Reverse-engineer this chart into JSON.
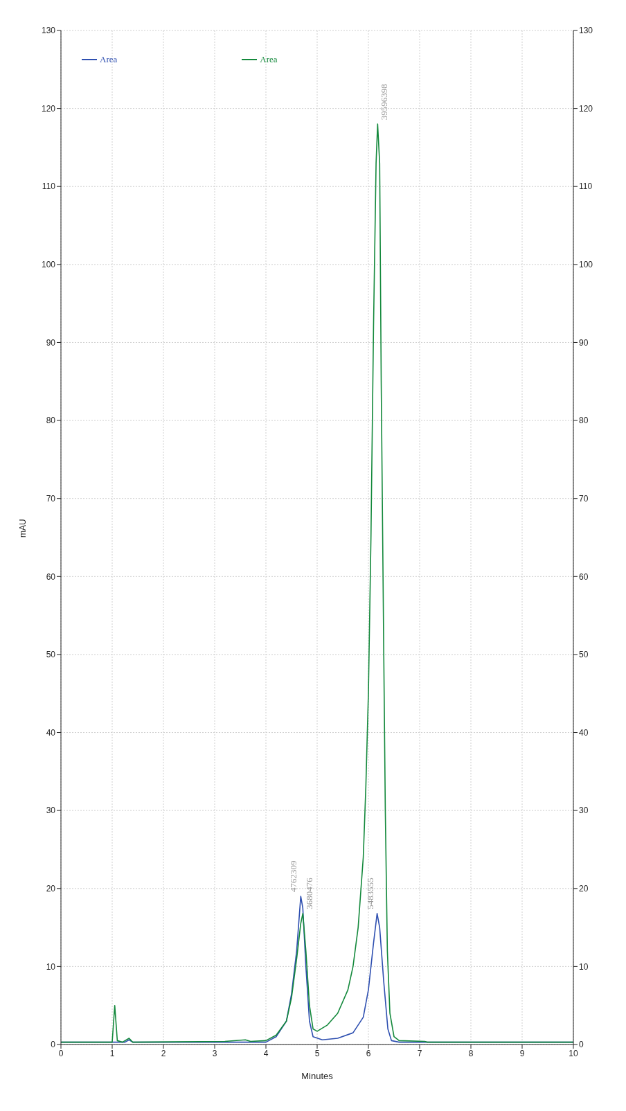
{
  "chart_data": {
    "type": "line",
    "xlabel": "Minutes",
    "ylabel": "mAU",
    "xlim": [
      0,
      10
    ],
    "xticks": [
      0,
      1,
      2,
      3,
      4,
      5,
      6,
      7,
      8,
      9,
      10
    ],
    "ylim": [
      0,
      130
    ],
    "yticks": [
      0,
      10,
      20,
      30,
      40,
      50,
      60,
      70,
      80,
      90,
      100,
      110,
      120,
      130
    ],
    "y2lim": [
      0,
      130
    ],
    "y2ticks": [
      0,
      10,
      20,
      30,
      40,
      50,
      60,
      70,
      80,
      90,
      100,
      110,
      120,
      130
    ],
    "grid": true,
    "legend": "top left",
    "marker": "none",
    "line_style": "solid",
    "series": [
      {
        "name": "Area",
        "color": "#2e4fb0",
        "x": [
          0,
          1.05,
          1.25,
          1.33,
          1.4,
          3.2,
          4.0,
          4.2,
          4.4,
          4.5,
          4.6,
          4.68,
          4.72,
          4.78,
          4.85,
          4.92,
          5.1,
          5.4,
          5.7,
          5.9,
          6.0,
          6.1,
          6.17,
          6.22,
          6.3,
          6.38,
          6.45,
          6.6,
          10
        ],
        "values": [
          0.3,
          0.3,
          0.3,
          0.6,
          0.3,
          0.3,
          0.3,
          1,
          3,
          6.5,
          12,
          19,
          17.5,
          10,
          3,
          1,
          0.6,
          0.8,
          1.5,
          3.5,
          7,
          13,
          16.8,
          15,
          8,
          2,
          0.5,
          0.3,
          0.3
        ]
      },
      {
        "name": "Area",
        "color": "#14893c",
        "x": [
          0,
          1.0,
          1.05,
          1.1,
          1.2,
          1.33,
          1.4,
          3.2,
          3.6,
          3.7,
          4.0,
          4.2,
          4.4,
          4.5,
          4.6,
          4.68,
          4.72,
          4.78,
          4.85,
          4.92,
          5.0,
          5.2,
          5.4,
          5.6,
          5.7,
          5.8,
          5.9,
          5.95,
          6.0,
          6.05,
          6.1,
          6.15,
          6.18,
          6.22,
          6.25,
          6.3,
          6.33,
          6.37,
          6.42,
          6.5,
          6.6,
          7.1,
          7.15,
          10
        ],
        "values": [
          0.3,
          0.3,
          5,
          0.5,
          0.3,
          0.8,
          0.3,
          0.4,
          0.6,
          0.4,
          0.5,
          1.2,
          3,
          6,
          11,
          15.5,
          16.8,
          12,
          5,
          2,
          1.7,
          2.5,
          4,
          7,
          10,
          15,
          24,
          33,
          45,
          65,
          92,
          113,
          118,
          113,
          85,
          50,
          30,
          12,
          4,
          1,
          0.5,
          0.4,
          0.3,
          0.3
        ]
      }
    ],
    "annotations": [
      {
        "text": "4762309",
        "x": 4.68,
        "y": 19
      },
      {
        "text": "3680476",
        "x": 4.72,
        "y": 16.8
      },
      {
        "text": "5483555",
        "x": 6.17,
        "y": 16.8
      },
      {
        "text": "39596398",
        "x": 6.18,
        "y": 118
      }
    ]
  }
}
